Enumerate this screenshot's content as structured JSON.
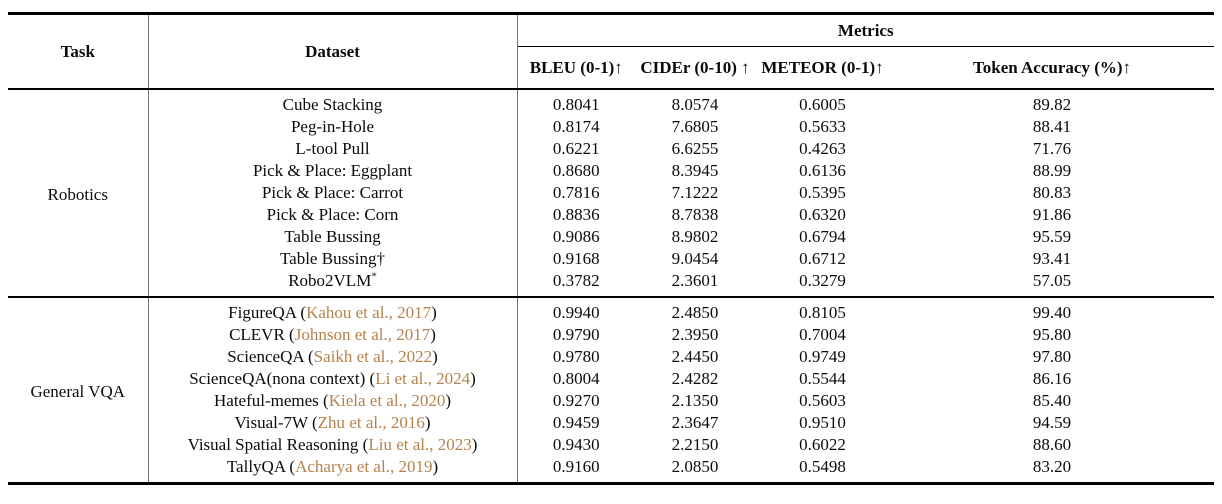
{
  "table": {
    "colors": {
      "citation_text": "#b5824c"
    },
    "col_headers": {
      "task": "Task",
      "dataset": "Dataset",
      "metrics_group": "Metrics",
      "metrics": [
        "BLEU (0-1)↑",
        "CIDEr (0-10) ↑",
        "METEOR (0-1)↑",
        "Token Accuracy (%)↑"
      ]
    },
    "groups": [
      {
        "task": "Robotics",
        "rows": [
          {
            "dataset": "Cube Stacking",
            "values": [
              "0.8041",
              "8.0574",
              "0.6005",
              "89.82"
            ]
          },
          {
            "dataset": "Peg-in-Hole",
            "values": [
              "0.8174",
              "7.6805",
              "0.5633",
              "88.41"
            ]
          },
          {
            "dataset": "L-tool Pull",
            "values": [
              "0.6221",
              "6.6255",
              "0.4263",
              "71.76"
            ]
          },
          {
            "dataset": "Pick & Place: Eggplant",
            "values": [
              "0.8680",
              "8.3945",
              "0.6136",
              "88.99"
            ]
          },
          {
            "dataset": "Pick & Place: Carrot",
            "values": [
              "0.7816",
              "7.1222",
              "0.5395",
              "80.83"
            ]
          },
          {
            "dataset": "Pick & Place: Corn",
            "values": [
              "0.8836",
              "8.7838",
              "0.6320",
              "91.86"
            ]
          },
          {
            "dataset": "Table Bussing",
            "values": [
              "0.9086",
              "8.9802",
              "0.6794",
              "95.59"
            ]
          },
          {
            "dataset": "Table Bussing",
            "suffix": "†",
            "sup": false,
            "values": [
              "0.9168",
              "9.0454",
              "0.6712",
              "93.41"
            ]
          },
          {
            "dataset": "Robo2VLM",
            "suffix": "*",
            "sup": true,
            "values": [
              "0.3782",
              "2.3601",
              "0.3279",
              "57.05"
            ]
          }
        ]
      },
      {
        "task": "General VQA",
        "rows": [
          {
            "dataset": "FigureQA",
            "citation": "Kahou et al., 2017",
            "values": [
              "0.9940",
              "2.4850",
              "0.8105",
              "99.40"
            ]
          },
          {
            "dataset": "CLEVR",
            "citation": "Johnson et al., 2017",
            "values": [
              "0.9790",
              "2.3950",
              "0.7004",
              "95.80"
            ]
          },
          {
            "dataset": "ScienceQA",
            "citation": "Saikh et al., 2022",
            "values": [
              "0.9780",
              "2.4450",
              "0.9749",
              "97.80"
            ]
          },
          {
            "dataset": "ScienceQA(nona context)",
            "citation": "Li et al., 2024",
            "values": [
              "0.8004",
              "2.4282",
              "0.5544",
              "86.16"
            ]
          },
          {
            "dataset": "Hateful-memes",
            "citation": "Kiela et al., 2020",
            "values": [
              "0.9270",
              "2.1350",
              "0.5603",
              "85.40"
            ]
          },
          {
            "dataset": "Visual-7W",
            "citation": "Zhu et al., 2016",
            "values": [
              "0.9459",
              "2.3647",
              "0.9510",
              "94.59"
            ]
          },
          {
            "dataset": "Visual Spatial Reasoning",
            "citation": "Liu et al., 2023",
            "values": [
              "0.9430",
              "2.2150",
              "0.6022",
              "88.60"
            ]
          },
          {
            "dataset": "TallyQA",
            "citation": "Acharya et al., 2019",
            "values": [
              "0.9160",
              "2.0850",
              "0.5498",
              "83.20"
            ]
          }
        ]
      }
    ]
  }
}
